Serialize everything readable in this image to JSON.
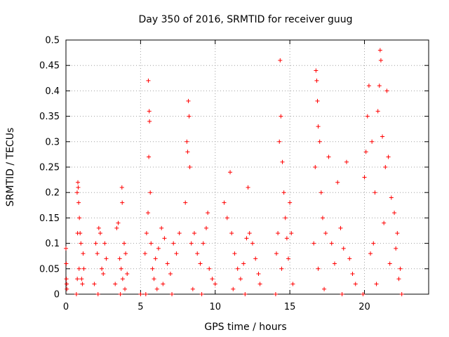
{
  "chart_data": {
    "type": "scatter",
    "title": "Day 350 of 2016, SRMTID for receiver guug",
    "xlabel": "GPS time / hours",
    "ylabel": "SRMTID / TECUs",
    "xlim": [
      0,
      24.3
    ],
    "ylim": [
      0,
      0.5
    ],
    "x_ticks": [
      0,
      5,
      10,
      15,
      20
    ],
    "x_tick_labels": [
      "0",
      "5",
      "10",
      "15",
      "20"
    ],
    "y_ticks": [
      0,
      0.05,
      0.1,
      0.15,
      0.2,
      0.25,
      0.3,
      0.35,
      0.4,
      0.45,
      0.5
    ],
    "y_tick_labels": [
      "0",
      "0.05",
      "0.1",
      "0.15",
      "0.2",
      "0.25",
      "0.3",
      "0.35",
      "0.4",
      "0.45",
      "0.5"
    ],
    "grid": true,
    "marker": "+",
    "color": "#ff0000",
    "series": [
      {
        "name": "SRMTID",
        "points": [
          [
            0.0,
            0.09
          ],
          [
            0.02,
            0.06
          ],
          [
            0.03,
            0.03
          ],
          [
            0.05,
            0.02
          ],
          [
            0.06,
            0.01
          ],
          [
            0.8,
            0.22
          ],
          [
            0.82,
            0.21
          ],
          [
            0.75,
            0.2
          ],
          [
            0.85,
            0.18
          ],
          [
            0.9,
            0.15
          ],
          [
            0.95,
            0.12
          ],
          [
            1.0,
            0.1
          ],
          [
            0.78,
            0.12
          ],
          [
            0.88,
            0.05
          ],
          [
            1.05,
            0.03
          ],
          [
            1.1,
            0.02
          ],
          [
            1.2,
            0.05
          ],
          [
            0.7,
            0.0
          ],
          [
            0.76,
            0.03
          ],
          [
            1.15,
            0.08
          ],
          [
            2.0,
            0.1
          ],
          [
            2.1,
            0.08
          ],
          [
            2.2,
            0.13
          ],
          [
            2.3,
            0.12
          ],
          [
            2.4,
            0.05
          ],
          [
            2.5,
            0.04
          ],
          [
            1.9,
            0.02
          ],
          [
            2.6,
            0.1
          ],
          [
            2.7,
            0.07
          ],
          [
            2.15,
            0.0
          ],
          [
            3.4,
            0.13
          ],
          [
            3.5,
            0.14
          ],
          [
            3.6,
            0.07
          ],
          [
            3.7,
            0.05
          ],
          [
            3.8,
            0.03
          ],
          [
            3.75,
            0.21
          ],
          [
            3.77,
            0.18
          ],
          [
            3.9,
            0.1
          ],
          [
            4.0,
            0.08
          ],
          [
            3.3,
            0.02
          ],
          [
            4.1,
            0.04
          ],
          [
            3.65,
            0.0
          ],
          [
            3.95,
            0.01
          ],
          [
            5.3,
            0.08
          ],
          [
            5.4,
            0.12
          ],
          [
            5.5,
            0.16
          ],
          [
            5.55,
            0.27
          ],
          [
            5.6,
            0.34
          ],
          [
            5.58,
            0.36
          ],
          [
            5.52,
            0.42
          ],
          [
            5.65,
            0.2
          ],
          [
            5.7,
            0.1
          ],
          [
            5.8,
            0.05
          ],
          [
            5.9,
            0.03
          ],
          [
            6.0,
            0.07
          ],
          [
            6.2,
            0.09
          ],
          [
            6.4,
            0.13
          ],
          [
            6.6,
            0.11
          ],
          [
            6.8,
            0.06
          ],
          [
            7.0,
            0.04
          ],
          [
            7.2,
            0.1
          ],
          [
            7.4,
            0.08
          ],
          [
            7.6,
            0.12
          ],
          [
            6.1,
            0.01
          ],
          [
            6.5,
            0.02
          ],
          [
            7.1,
            0.0
          ],
          [
            5.0,
            0.0
          ],
          [
            5.35,
            0.0
          ],
          [
            8.0,
            0.18
          ],
          [
            8.1,
            0.3
          ],
          [
            8.2,
            0.38
          ],
          [
            8.25,
            0.35
          ],
          [
            8.3,
            0.25
          ],
          [
            8.4,
            0.1
          ],
          [
            8.6,
            0.12
          ],
          [
            8.8,
            0.08
          ],
          [
            9.0,
            0.06
          ],
          [
            9.2,
            0.1
          ],
          [
            9.4,
            0.13
          ],
          [
            9.6,
            0.05
          ],
          [
            9.8,
            0.03
          ],
          [
            10.0,
            0.02
          ],
          [
            8.5,
            0.01
          ],
          [
            9.1,
            0.0
          ],
          [
            9.5,
            0.16
          ],
          [
            8.15,
            0.28
          ],
          [
            10.6,
            0.18
          ],
          [
            10.8,
            0.15
          ],
          [
            11.0,
            0.24
          ],
          [
            11.1,
            0.12
          ],
          [
            11.3,
            0.08
          ],
          [
            11.5,
            0.05
          ],
          [
            11.7,
            0.03
          ],
          [
            11.9,
            0.06
          ],
          [
            12.1,
            0.11
          ],
          [
            12.2,
            0.21
          ],
          [
            12.3,
            0.12
          ],
          [
            12.5,
            0.1
          ],
          [
            12.7,
            0.07
          ],
          [
            12.9,
            0.04
          ],
          [
            11.2,
            0.01
          ],
          [
            12.0,
            0.0
          ],
          [
            13.0,
            0.02
          ],
          [
            14.1,
            0.08
          ],
          [
            14.2,
            0.12
          ],
          [
            14.3,
            0.3
          ],
          [
            14.35,
            0.46
          ],
          [
            14.4,
            0.35
          ],
          [
            14.5,
            0.26
          ],
          [
            14.6,
            0.2
          ],
          [
            14.7,
            0.15
          ],
          [
            14.8,
            0.11
          ],
          [
            14.9,
            0.07
          ],
          [
            15.0,
            0.18
          ],
          [
            15.1,
            0.12
          ],
          [
            14.05,
            0.0
          ],
          [
            14.45,
            0.05
          ],
          [
            15.2,
            0.02
          ],
          [
            16.6,
            0.1
          ],
          [
            16.7,
            0.25
          ],
          [
            16.75,
            0.44
          ],
          [
            16.8,
            0.42
          ],
          [
            16.85,
            0.38
          ],
          [
            16.9,
            0.33
          ],
          [
            17.0,
            0.3
          ],
          [
            17.1,
            0.2
          ],
          [
            17.2,
            0.15
          ],
          [
            17.4,
            0.12
          ],
          [
            17.6,
            0.27
          ],
          [
            17.8,
            0.1
          ],
          [
            18.0,
            0.06
          ],
          [
            18.2,
            0.22
          ],
          [
            18.4,
            0.13
          ],
          [
            18.6,
            0.09
          ],
          [
            18.8,
            0.26
          ],
          [
            19.0,
            0.07
          ],
          [
            19.2,
            0.04
          ],
          [
            19.4,
            0.02
          ],
          [
            17.3,
            0.01
          ],
          [
            18.5,
            0.0
          ],
          [
            16.9,
            0.05
          ],
          [
            20.0,
            0.23
          ],
          [
            20.1,
            0.28
          ],
          [
            20.2,
            0.35
          ],
          [
            20.3,
            0.41
          ],
          [
            20.5,
            0.3
          ],
          [
            20.7,
            0.2
          ],
          [
            20.9,
            0.36
          ],
          [
            21.0,
            0.41
          ],
          [
            21.05,
            0.48
          ],
          [
            21.1,
            0.46
          ],
          [
            21.2,
            0.31
          ],
          [
            21.4,
            0.25
          ],
          [
            21.5,
            0.4
          ],
          [
            21.6,
            0.27
          ],
          [
            21.8,
            0.19
          ],
          [
            22.0,
            0.16
          ],
          [
            22.2,
            0.12
          ],
          [
            22.4,
            0.05
          ],
          [
            20.4,
            0.08
          ],
          [
            20.6,
            0.1
          ],
          [
            21.3,
            0.14
          ],
          [
            21.7,
            0.06
          ],
          [
            22.1,
            0.09
          ],
          [
            22.3,
            0.03
          ],
          [
            20.8,
            0.02
          ],
          [
            19.9,
            0.0
          ],
          [
            22.5,
            0.0
          ]
        ]
      }
    ]
  }
}
